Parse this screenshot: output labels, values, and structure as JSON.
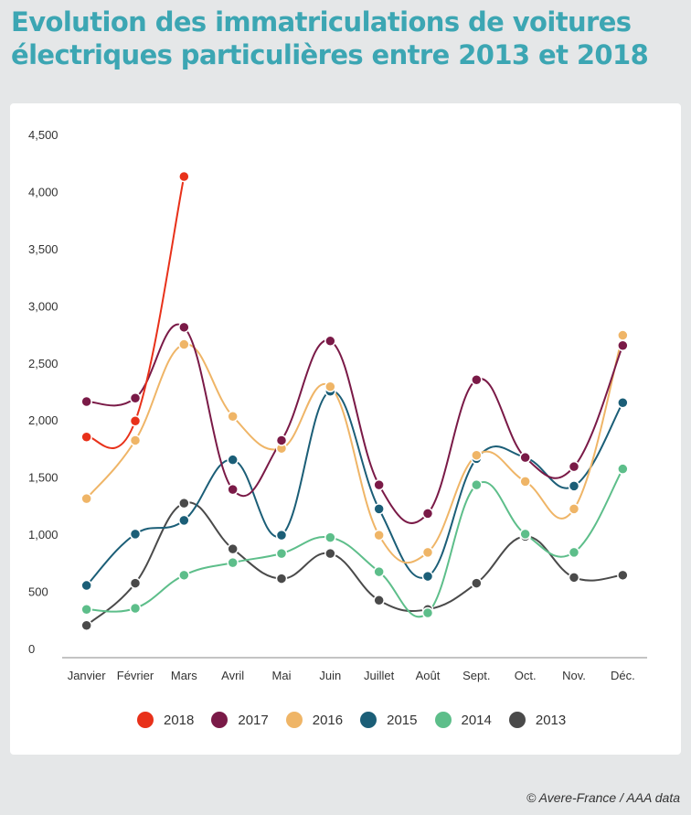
{
  "title": {
    "line1": "Evolution des immatriculations de voitures",
    "line2": "électriques particulières entre 2013 et 2018"
  },
  "credit": "© Avere-France / AAA data",
  "chart_data": {
    "type": "line",
    "categories": [
      "Janvier",
      "Février",
      "Mars",
      "Avril",
      "Mai",
      "Juin",
      "Juillet",
      "Août",
      "Sept.",
      "Oct.",
      "Nov.",
      "Déc."
    ],
    "y_ticks": [
      "0",
      "500",
      "1,000",
      "1,500",
      "2,000",
      "2,500",
      "3,000",
      "3,500",
      "4,000",
      "4,500"
    ],
    "ylim": [
      0,
      4500
    ],
    "grid": false,
    "legend_position": "bottom",
    "series": [
      {
        "name": "2018",
        "color": "#e8311a",
        "values": [
          1860,
          2000,
          4140,
          null,
          null,
          null,
          null,
          null,
          null,
          null,
          null,
          null
        ]
      },
      {
        "name": "2017",
        "color": "#7a1a47",
        "values": [
          2170,
          2200,
          2820,
          1400,
          1830,
          2700,
          1440,
          1190,
          2360,
          1680,
          1600,
          2660
        ]
      },
      {
        "name": "2016",
        "color": "#efb567",
        "values": [
          1320,
          1830,
          2670,
          2040,
          1760,
          2300,
          1000,
          850,
          1700,
          1470,
          1230,
          2750
        ]
      },
      {
        "name": "2015",
        "color": "#1b5e77",
        "values": [
          560,
          1010,
          1130,
          1660,
          1000,
          2260,
          1230,
          640,
          1670,
          1680,
          1430,
          2160
        ]
      },
      {
        "name": "2014",
        "color": "#5dbe8a",
        "values": [
          350,
          360,
          650,
          760,
          840,
          980,
          680,
          320,
          1440,
          1010,
          850,
          1580
        ]
      },
      {
        "name": "2013",
        "color": "#4a4a4a",
        "values": [
          210,
          580,
          1280,
          880,
          620,
          840,
          430,
          350,
          580,
          990,
          630,
          650
        ]
      }
    ]
  }
}
